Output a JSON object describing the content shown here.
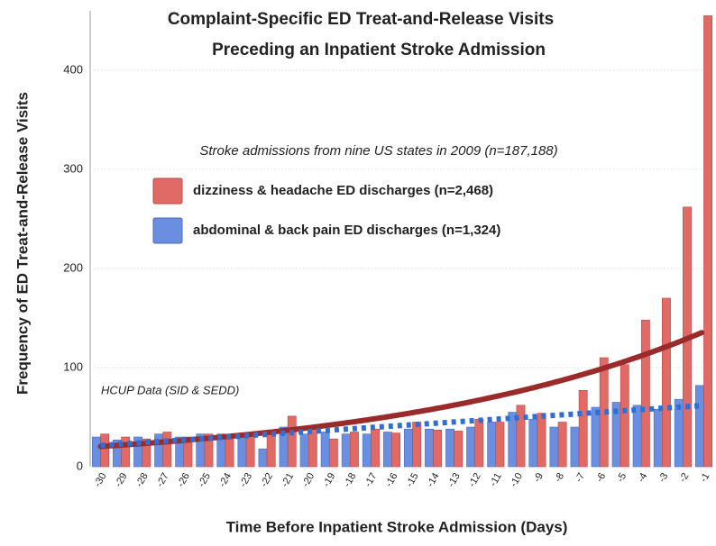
{
  "chart_data": {
    "type": "bar",
    "title": [
      "Complaint-Specific ED Treat-and-Release Visits",
      "Preceding an Inpatient Stroke Admission"
    ],
    "subtitle": "Stroke admissions from nine US states in 2009 (n=187,188)",
    "annotation": "HCUP Data (SID & SEDD)",
    "x_label": "Time Before Inpatient Stroke Admission (Days)",
    "y_label": "Frequency of ED Treat-and-Release Visits",
    "categories": [
      "-30",
      "-29",
      "-28",
      "-27",
      "-26",
      "-25",
      "-24",
      "-23",
      "-22",
      "-21",
      "-20",
      "-19",
      "-18",
      "-17",
      "-16",
      "-15",
      "-14",
      "-13",
      "-12",
      "-11",
      "-10",
      "-9",
      "-8",
      "-7",
      "-6",
      "-5",
      "-4",
      "-3",
      "-2",
      "-1"
    ],
    "series": [
      {
        "name": "dizziness & headache ED discharges (n=2,468)",
        "color": "#e06a66",
        "values": [
          33,
          30,
          28,
          35,
          30,
          33,
          32,
          33,
          37,
          51,
          38,
          28,
          35,
          38,
          34,
          45,
          37,
          36,
          48,
          45,
          62,
          54,
          45,
          77,
          110,
          103,
          148,
          170,
          262,
          455
        ]
      },
      {
        "name": "abdominal & back pain ED discharges (n=1,324)",
        "color": "#6a8ee0",
        "values": [
          30,
          27,
          30,
          33,
          30,
          33,
          33,
          30,
          18,
          40,
          33,
          35,
          33,
          33,
          35,
          38,
          38,
          38,
          40,
          45,
          55,
          48,
          40,
          40,
          60,
          65,
          62,
          58,
          68,
          82
        ]
      }
    ],
    "ylim": [
      0,
      460
    ],
    "yticks": [
      0,
      100,
      200,
      300,
      400
    ],
    "grid": true
  }
}
